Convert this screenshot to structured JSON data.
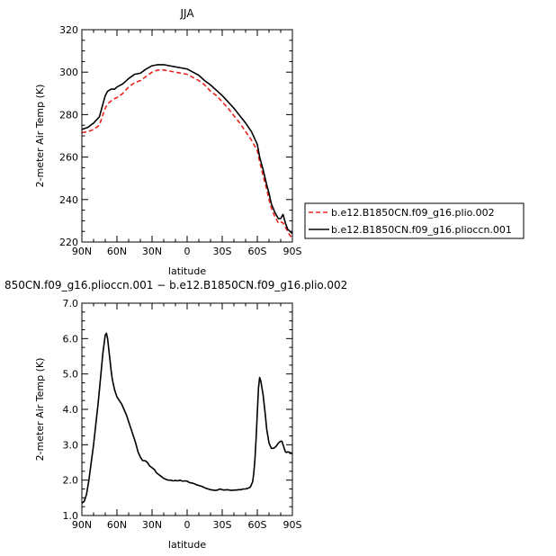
{
  "chart_data": [
    {
      "type": "line",
      "title": "JJA",
      "xlabel": "latitude",
      "ylabel": "2-meter Air Temp (K)",
      "xlim": [
        90,
        -90
      ],
      "ylim": [
        220,
        320
      ],
      "x_ticks": [
        90,
        60,
        30,
        0,
        -30,
        -60,
        -90
      ],
      "x_tick_labels": [
        "90N",
        "60N",
        "30N",
        "0",
        "30S",
        "60S",
        "90S"
      ],
      "y_ticks": [
        220,
        240,
        260,
        280,
        300,
        320
      ],
      "y_tick_labels": [
        "220",
        "240",
        "260",
        "280",
        "300",
        "320"
      ],
      "legend_position": "right",
      "series": [
        {
          "name": "b.e12.B1850CN.f09_g16.plio.002",
          "color": "#e8231c",
          "style": "dashed",
          "x": [
            90,
            85,
            80,
            75,
            72,
            70,
            68,
            65,
            62,
            60,
            55,
            50,
            45,
            40,
            35,
            30,
            25,
            20,
            15,
            10,
            5,
            0,
            -5,
            -10,
            -15,
            -20,
            -25,
            -30,
            -35,
            -40,
            -45,
            -50,
            -55,
            -60,
            -62,
            -65,
            -68,
            -70,
            -72,
            -75,
            -78,
            -80,
            -82,
            -84,
            -86,
            -88,
            -90
          ],
          "y": [
            271.5,
            272,
            273,
            275,
            280,
            283,
            285,
            286.5,
            287.5,
            288,
            290,
            293,
            295,
            296,
            298,
            300,
            301,
            301,
            300.5,
            300,
            299.5,
            299,
            297.5,
            296,
            294,
            291,
            289,
            286,
            283,
            279.5,
            276,
            272,
            268,
            263,
            258,
            251,
            245,
            240,
            236,
            232,
            229,
            229.5,
            229,
            227,
            225,
            223,
            222
          ]
        },
        {
          "name": "b.e12.B1850CN.f09_g16.plioccn.001",
          "color": "#000000",
          "style": "solid",
          "x": [
            90,
            85,
            80,
            75,
            72,
            70,
            68,
            65,
            62,
            60,
            55,
            50,
            45,
            40,
            35,
            30,
            25,
            20,
            15,
            10,
            5,
            0,
            -5,
            -10,
            -15,
            -20,
            -25,
            -30,
            -35,
            -40,
            -45,
            -50,
            -55,
            -60,
            -62,
            -65,
            -68,
            -70,
            -72,
            -75,
            -78,
            -80,
            -82,
            -84,
            -86,
            -88,
            -90
          ],
          "y": [
            273,
            274,
            276,
            279,
            285,
            289,
            291,
            292,
            292,
            293,
            294.5,
            297,
            299,
            299.5,
            301.5,
            303,
            303.5,
            303.5,
            303,
            302.5,
            302,
            301.5,
            300,
            298.5,
            296,
            294,
            291.5,
            289,
            286,
            283,
            279.5,
            276,
            272,
            266,
            260,
            254,
            247,
            243,
            238,
            234,
            231,
            231,
            233,
            229,
            226,
            225,
            224
          ]
        }
      ]
    },
    {
      "type": "line",
      "title": "850CN.f09_g16.plioccn.001 − b.e12.B1850CN.f09_g16.plio.002",
      "xlabel": "latitude",
      "ylabel": "2-meter Air Temp (K)",
      "xlim": [
        90,
        -90
      ],
      "ylim": [
        1.0,
        7.0
      ],
      "x_ticks": [
        90,
        60,
        30,
        0,
        -30,
        -60,
        -90
      ],
      "x_tick_labels": [
        "90N",
        "60N",
        "30N",
        "0",
        "30S",
        "60S",
        "90S"
      ],
      "y_ticks": [
        1.0,
        2.0,
        3.0,
        4.0,
        5.0,
        6.0,
        7.0
      ],
      "y_tick_labels": [
        "1.0",
        "2.0",
        "3.0",
        "4.0",
        "5.0",
        "6.0",
        "7.0"
      ],
      "series": [
        {
          "color": "#000000",
          "style": "solid",
          "x": [
            90,
            88,
            86,
            84,
            82,
            80,
            78,
            76,
            74,
            72,
            70,
            69,
            68,
            67,
            66,
            65,
            64,
            62,
            60,
            58,
            56,
            54,
            52,
            50,
            48,
            46,
            44,
            42,
            40,
            38,
            36,
            34,
            32,
            30,
            28,
            26,
            24,
            22,
            20,
            18,
            16,
            14,
            12,
            10,
            8,
            6,
            4,
            2,
            0,
            -2,
            -4,
            -6,
            -8,
            -10,
            -12,
            -14,
            -16,
            -18,
            -20,
            -22,
            -24,
            -26,
            -28,
            -30,
            -32,
            -34,
            -36,
            -38,
            -40,
            -42,
            -44,
            -46,
            -48,
            -50,
            -52,
            -54,
            -56,
            -57,
            -58,
            -59,
            -60,
            -61,
            -62,
            -63,
            -64,
            -65,
            -66,
            -67,
            -68,
            -70,
            -72,
            -74,
            -76,
            -78,
            -80,
            -81,
            -82,
            -83,
            -84,
            -85,
            -86,
            -88,
            -90
          ],
          "y": [
            1.35,
            1.4,
            1.6,
            2.0,
            2.5,
            3.0,
            3.6,
            4.2,
            4.9,
            5.6,
            6.1,
            6.15,
            6.0,
            5.7,
            5.4,
            5.1,
            4.85,
            4.55,
            4.35,
            4.25,
            4.15,
            4.0,
            3.85,
            3.65,
            3.45,
            3.25,
            3.05,
            2.8,
            2.65,
            2.55,
            2.55,
            2.5,
            2.4,
            2.35,
            2.3,
            2.2,
            2.15,
            2.1,
            2.05,
            2.02,
            2.0,
            2.0,
            1.98,
            1.99,
            1.98,
            2.0,
            1.97,
            1.98,
            1.97,
            1.93,
            1.92,
            1.9,
            1.87,
            1.85,
            1.83,
            1.8,
            1.77,
            1.75,
            1.73,
            1.72,
            1.71,
            1.72,
            1.75,
            1.73,
            1.72,
            1.73,
            1.72,
            1.71,
            1.72,
            1.72,
            1.73,
            1.73,
            1.75,
            1.75,
            1.77,
            1.8,
            1.95,
            2.2,
            2.6,
            3.2,
            3.9,
            4.6,
            4.9,
            4.8,
            4.6,
            4.4,
            4.1,
            3.8,
            3.45,
            3.05,
            2.9,
            2.9,
            2.95,
            3.05,
            3.1,
            3.1,
            3.0,
            2.9,
            2.8,
            2.78,
            2.8,
            2.78,
            2.75
          ]
        }
      ]
    }
  ]
}
